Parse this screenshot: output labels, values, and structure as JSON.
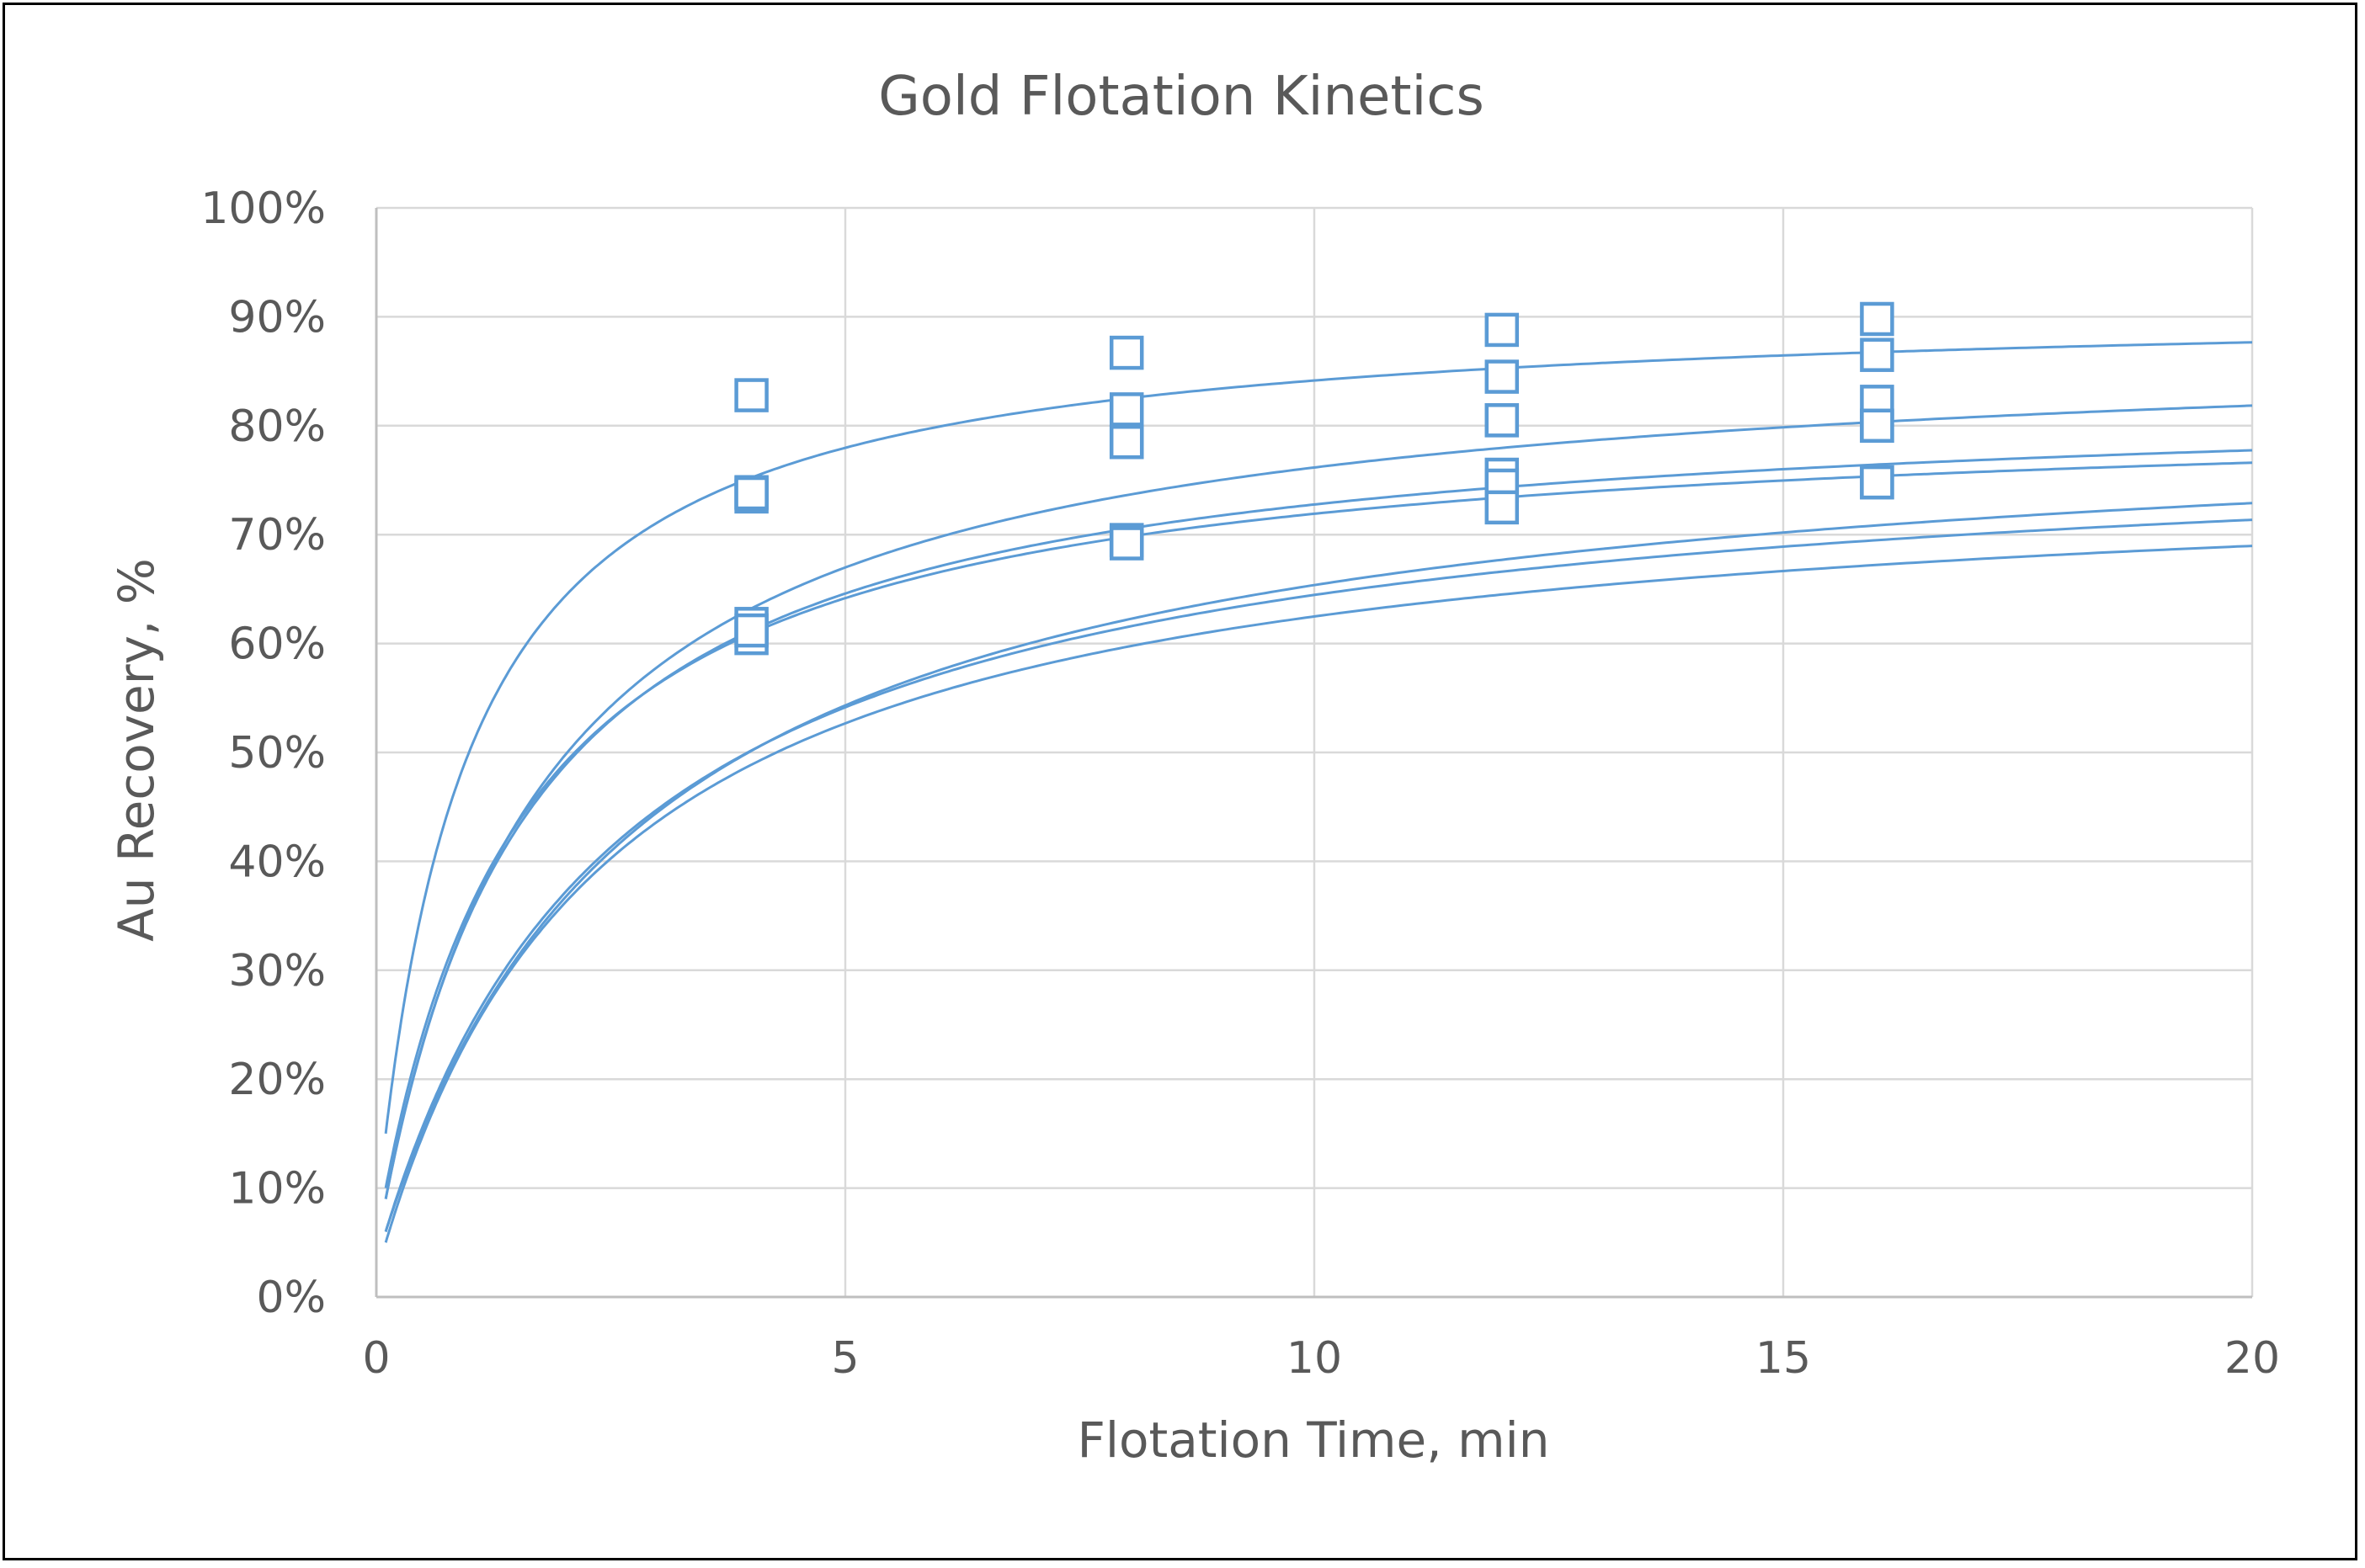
{
  "chart_data": {
    "type": "scatter",
    "title": "Gold Flotation Kinetics",
    "xlabel": "Flotation Time, min",
    "ylabel": "Au Recovery, %",
    "xlim": [
      0,
      20
    ],
    "ylim": [
      0,
      100
    ],
    "x_ticks": [
      0,
      5,
      10,
      15,
      20
    ],
    "x_tick_labels": [
      "0",
      "5",
      "10",
      "15",
      "20"
    ],
    "y_ticks": [
      0,
      10,
      20,
      30,
      40,
      50,
      60,
      70,
      80,
      90,
      100
    ],
    "y_tick_labels": [
      "0%",
      "10%",
      "20%",
      "30%",
      "40%",
      "50%",
      "60%",
      "70%",
      "80%",
      "90%",
      "100%"
    ],
    "grid": true,
    "legend": "none",
    "colors": {
      "series": "#5B9BD5",
      "grid": "#D9D9D9",
      "axis": "#BFBFBF",
      "text": "#595959"
    },
    "series": [
      {
        "points": [
          [
            4,
            82.8
          ],
          [
            8,
            86.7
          ],
          [
            12,
            88.8
          ],
          [
            16,
            89.8
          ]
        ],
        "fit": {
          "rmax": 91.5,
          "k": 0.95,
          "x0": 0.1,
          "y0": 15
        }
      },
      {
        "points": [
          [
            4,
            73.9
          ],
          [
            8,
            81.5
          ],
          [
            12,
            84.5
          ],
          [
            16,
            86.5
          ]
        ],
        "fit": {
          "rmax": 88.5,
          "k": 0.55,
          "x0": 0.1,
          "y0": 9
        }
      },
      {
        "points": [
          [
            4,
            73.5
          ],
          [
            8,
            78.5
          ],
          [
            12,
            80.5
          ],
          [
            16,
            82.2
          ]
        ],
        "fit": {
          "rmax": 83.5,
          "k": 0.6,
          "x0": 0.1,
          "y0": 9
        }
      },
      {
        "points": [
          [
            4,
            73.8
          ],
          [
            8,
            78.5
          ],
          [
            12,
            80.5
          ],
          [
            16,
            80.0
          ]
        ],
        "fit": {
          "rmax": 82.0,
          "k": 0.62,
          "x0": 0.1,
          "y0": 10
        }
      },
      {
        "points": [
          [
            4,
            61.8
          ],
          [
            8,
            69.5
          ],
          [
            12,
            75.5
          ],
          [
            16,
            80.0
          ]
        ],
        "fit": {
          "rmax": 82.5,
          "k": 0.35,
          "x0": 0.1,
          "y0": 6
        }
      },
      {
        "points": [
          [
            4,
            60.5
          ],
          [
            8,
            69.5
          ],
          [
            12,
            74.5
          ],
          [
            16,
            74.8
          ]
        ],
        "fit": {
          "rmax": 77.0,
          "k": 0.4,
          "x0": 0.1,
          "y0": 5
        }
      },
      {
        "points": [
          [
            4,
            61.2
          ],
          [
            8,
            69.2
          ],
          [
            12,
            72.5
          ],
          [
            16,
            74.8
          ]
        ],
        "fit": {
          "rmax": 80.0,
          "k": 0.38,
          "x0": 0.1,
          "y0": 6
        }
      }
    ]
  }
}
